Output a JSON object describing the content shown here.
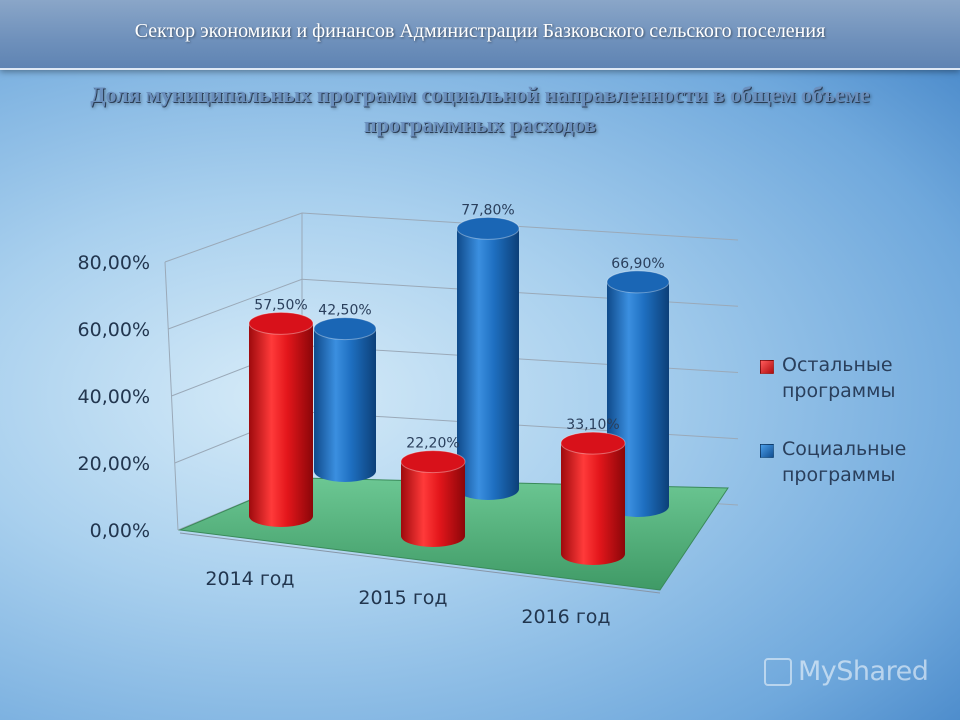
{
  "header": {
    "title": "Сектор экономики и финансов Администрации Базковского сельского поселения"
  },
  "chart_data": {
    "type": "bar",
    "title": "Доля муниципальных программ социальной направленности в общем объеме программных расходов",
    "categories": [
      "2014 год",
      "2015 год",
      "2016 год"
    ],
    "series": [
      {
        "name": "Остальные программы",
        "values": [
          57.5,
          22.2,
          33.1
        ],
        "labels": [
          "57,50%",
          "22,20%",
          "33,10%"
        ],
        "color": "#e3161b"
      },
      {
        "name": "Социальные программы",
        "values": [
          42.5,
          77.8,
          66.9
        ],
        "labels": [
          "42,50%",
          "77,80%",
          "66,90%"
        ],
        "color": "#1e6fc0"
      }
    ],
    "yticks": [
      "0,00%",
      "20,00%",
      "40,00%",
      "60,00%",
      "80,00%"
    ],
    "ylim": [
      0,
      80
    ],
    "style": "3d-cylinder",
    "legend": "right",
    "floor_color": "#5fb883"
  },
  "watermark": {
    "text": "MyShared"
  }
}
